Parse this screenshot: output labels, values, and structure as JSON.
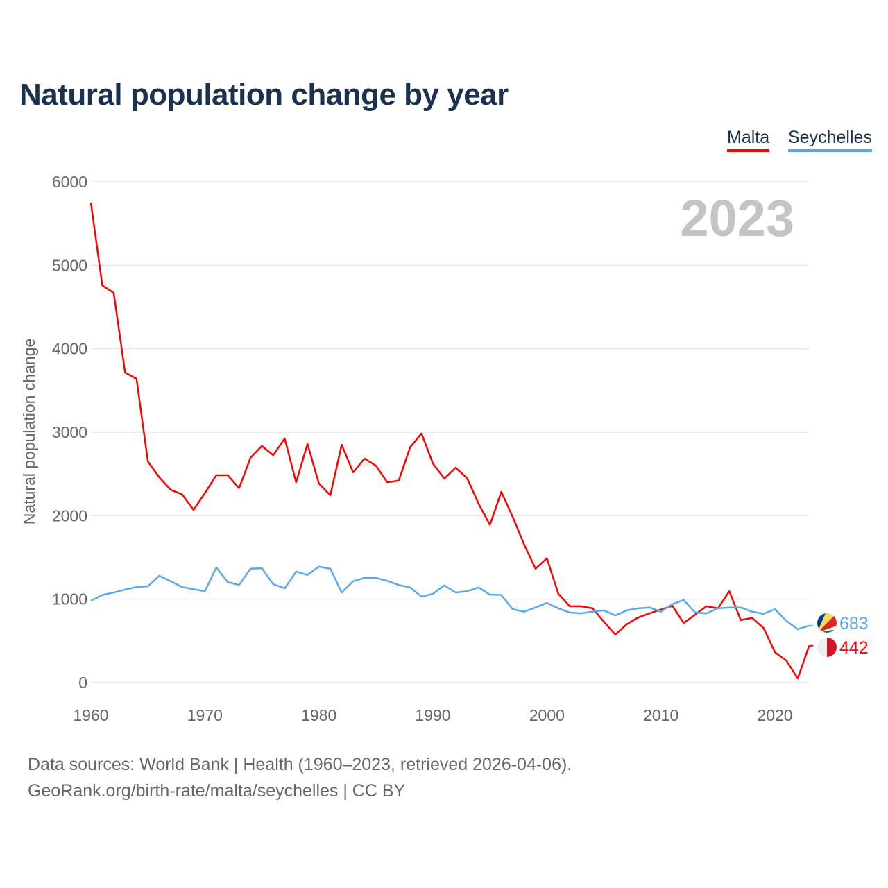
{
  "title": "Natural population change by year",
  "legend": [
    {
      "label": "Malta",
      "color": "#ff0000"
    },
    {
      "label": "Seychelles",
      "color": "#5aa7ec"
    }
  ],
  "year_label": "2023",
  "footer": {
    "line1": "Data sources: World Bank | Health (1960–2023, retrieved 2026-04-06).",
    "line2": "GeoRank.org/birth-rate/malta/seychelles | CC BY"
  },
  "chart_data": {
    "type": "line",
    "title": "Natural population change by year",
    "xlabel": "",
    "ylabel": "Natural population change",
    "xlim": [
      1960,
      2023
    ],
    "ylim": [
      0,
      6000
    ],
    "xticks": [
      "1960",
      "1970",
      "1980",
      "1990",
      "2000",
      "2010",
      "2020"
    ],
    "yticks": [
      "0",
      "1000",
      "2000",
      "3000",
      "4000",
      "5000",
      "6000"
    ],
    "grid": true,
    "legend_position": "top-right",
    "x": [
      1960,
      1961,
      1962,
      1963,
      1964,
      1965,
      1966,
      1967,
      1968,
      1969,
      1970,
      1971,
      1972,
      1973,
      1974,
      1975,
      1976,
      1977,
      1978,
      1979,
      1980,
      1981,
      1982,
      1983,
      1984,
      1985,
      1986,
      1987,
      1988,
      1989,
      1990,
      1991,
      1992,
      1993,
      1994,
      1995,
      1996,
      1997,
      1998,
      1999,
      2000,
      2001,
      2002,
      2003,
      2004,
      2005,
      2006,
      2007,
      2008,
      2009,
      2010,
      2011,
      2012,
      2013,
      2014,
      2015,
      2016,
      2017,
      2018,
      2019,
      2020,
      2021,
      2022,
      2023
    ],
    "series": [
      {
        "name": "Malta",
        "color": "#ff0000",
        "end_label": "442",
        "values": [
          5750,
          4760,
          4670,
          3715,
          3640,
          2650,
          2460,
          2310,
          2255,
          2070,
          2270,
          2485,
          2485,
          2330,
          2695,
          2835,
          2725,
          2925,
          2400,
          2860,
          2385,
          2245,
          2850,
          2520,
          2685,
          2600,
          2400,
          2420,
          2820,
          2985,
          2625,
          2445,
          2575,
          2450,
          2145,
          1890,
          2285,
          1985,
          1655,
          1365,
          1490,
          1065,
          915,
          915,
          890,
          730,
          575,
          700,
          780,
          830,
          875,
          920,
          715,
          815,
          915,
          890,
          1095,
          750,
          775,
          655,
          365,
          265,
          50,
          442
        ]
      },
      {
        "name": "Seychelles",
        "color": "#5aa7ec",
        "end_label": "683",
        "values": [
          980,
          1050,
          1080,
          1115,
          1145,
          1155,
          1280,
          1215,
          1145,
          1120,
          1095,
          1380,
          1205,
          1170,
          1365,
          1370,
          1180,
          1130,
          1330,
          1290,
          1390,
          1365,
          1080,
          1215,
          1255,
          1255,
          1220,
          1170,
          1140,
          1030,
          1065,
          1165,
          1080,
          1095,
          1140,
          1055,
          1050,
          880,
          850,
          900,
          955,
          890,
          840,
          830,
          850,
          865,
          805,
          865,
          890,
          900,
          850,
          940,
          990,
          840,
          830,
          890,
          900,
          900,
          850,
          825,
          880,
          740,
          640,
          683
        ]
      }
    ]
  }
}
